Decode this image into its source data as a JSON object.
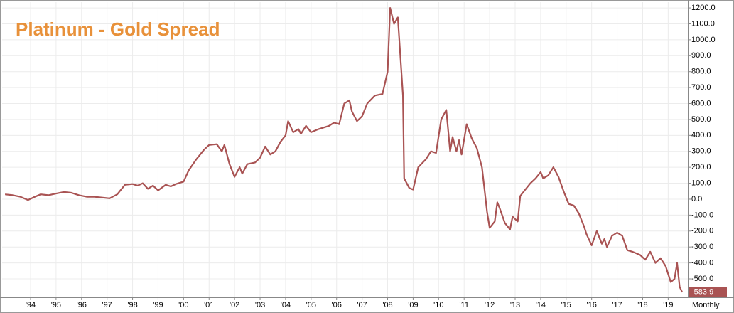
{
  "chart_data": {
    "type": "line",
    "title": "Platinum - Gold Spread",
    "period": "Monthly",
    "color": "#a95353",
    "grid": true,
    "x": [
      1993.0,
      1993.3,
      1993.6,
      1993.9,
      1994.1,
      1994.4,
      1994.7,
      1995.0,
      1995.3,
      1995.6,
      1995.9,
      1996.2,
      1996.5,
      1996.8,
      1997.1,
      1997.4,
      1997.7,
      1998.0,
      1998.2,
      1998.4,
      1998.6,
      1998.8,
      1999.0,
      1999.3,
      1999.5,
      1999.7,
      2000.0,
      2000.2,
      2000.5,
      2000.8,
      2001.0,
      2001.3,
      2001.5,
      2001.6,
      2001.8,
      2002.0,
      2002.2,
      2002.3,
      2002.5,
      2002.8,
      2003.0,
      2003.2,
      2003.4,
      2003.6,
      2003.8,
      2004.0,
      2004.1,
      2004.3,
      2004.5,
      2004.6,
      2004.8,
      2005.0,
      2005.3,
      2005.7,
      2005.9,
      2006.1,
      2006.3,
      2006.5,
      2006.6,
      2006.8,
      2007.0,
      2007.2,
      2007.5,
      2007.8,
      2008.0,
      2008.1,
      2008.25,
      2008.4,
      2008.6,
      2008.65,
      2008.85,
      2009.0,
      2009.2,
      2009.5,
      2009.7,
      2009.9,
      2010.1,
      2010.3,
      2010.45,
      2010.55,
      2010.7,
      2010.8,
      2010.9,
      2011.1,
      2011.3,
      2011.5,
      2011.7,
      2011.9,
      2012.0,
      2012.2,
      2012.3,
      2012.4,
      2012.6,
      2012.8,
      2012.9,
      2013.1,
      2013.2,
      2013.4,
      2013.6,
      2013.8,
      2014.0,
      2014.1,
      2014.3,
      2014.5,
      2014.7,
      2014.9,
      2015.1,
      2015.3,
      2015.5,
      2015.7,
      2015.8,
      2016.0,
      2016.2,
      2016.4,
      2016.5,
      2016.6,
      2016.8,
      2017.0,
      2017.2,
      2017.4,
      2017.6,
      2017.9,
      2018.1,
      2018.3,
      2018.5,
      2018.7,
      2018.9,
      2019.1,
      2019.25,
      2019.35,
      2019.45,
      2019.55
    ],
    "values": [
      30,
      25,
      15,
      -5,
      10,
      30,
      25,
      35,
      45,
      40,
      25,
      15,
      15,
      10,
      5,
      30,
      90,
      95,
      85,
      100,
      65,
      85,
      55,
      90,
      80,
      95,
      110,
      180,
      250,
      310,
      340,
      345,
      300,
      340,
      220,
      140,
      200,
      160,
      220,
      230,
      260,
      330,
      280,
      300,
      360,
      400,
      490,
      420,
      440,
      410,
      460,
      420,
      440,
      460,
      480,
      470,
      600,
      620,
      550,
      490,
      520,
      600,
      650,
      660,
      800,
      1200,
      1100,
      1140,
      650,
      130,
      70,
      60,
      200,
      250,
      300,
      290,
      500,
      560,
      300,
      390,
      300,
      370,
      280,
      470,
      380,
      320,
      200,
      -80,
      -180,
      -140,
      -20,
      -60,
      -150,
      -190,
      -110,
      -140,
      20,
      60,
      100,
      130,
      170,
      130,
      150,
      200,
      140,
      50,
      -30,
      -40,
      -90,
      -170,
      -220,
      -290,
      -200,
      -280,
      -250,
      -300,
      -230,
      -210,
      -230,
      -320,
      -330,
      -350,
      -380,
      -330,
      -400,
      -370,
      -420,
      -520,
      -500,
      -400,
      -550,
      -583.9
    ],
    "xlim": [
      1992.886,
      2019.77
    ],
    "xticks": [
      {
        "value": 1994,
        "label": "'94"
      },
      {
        "value": 1995,
        "label": "'95"
      },
      {
        "value": 1996,
        "label": "'96"
      },
      {
        "value": 1997,
        "label": "'97"
      },
      {
        "value": 1998,
        "label": "'98"
      },
      {
        "value": 1999,
        "label": "'99"
      },
      {
        "value": 2000,
        "label": "'00"
      },
      {
        "value": 2001,
        "label": "'01"
      },
      {
        "value": 2002,
        "label": "'02"
      },
      {
        "value": 2003,
        "label": "'03"
      },
      {
        "value": 2004,
        "label": "'04"
      },
      {
        "value": 2005,
        "label": "'05"
      },
      {
        "value": 2006,
        "label": "'06"
      },
      {
        "value": 2007,
        "label": "'07"
      },
      {
        "value": 2008,
        "label": "'08"
      },
      {
        "value": 2009,
        "label": "'09"
      },
      {
        "value": 2010,
        "label": "'10"
      },
      {
        "value": 2011,
        "label": "'11"
      },
      {
        "value": 2012,
        "label": "'12"
      },
      {
        "value": 2013,
        "label": "'13"
      },
      {
        "value": 2014,
        "label": "'14"
      },
      {
        "value": 2015,
        "label": "'15"
      },
      {
        "value": 2016,
        "label": "'16"
      },
      {
        "value": 2017,
        "label": "'17"
      },
      {
        "value": 2018,
        "label": "'18"
      },
      {
        "value": 2019,
        "label": "'19"
      }
    ],
    "ylim": [
      -616,
      1236
    ],
    "yticks": [
      {
        "value": -500,
        "label": "-500.0"
      },
      {
        "value": -400,
        "label": "-400.0"
      },
      {
        "value": -300,
        "label": "-300.0"
      },
      {
        "value": -200,
        "label": "-200.0"
      },
      {
        "value": -100,
        "label": "-100.0"
      },
      {
        "value": 0,
        "label": "0.0"
      },
      {
        "value": 100,
        "label": "100.0"
      },
      {
        "value": 200,
        "label": "200.0"
      },
      {
        "value": 300,
        "label": "300.0"
      },
      {
        "value": 400,
        "label": "400.0"
      },
      {
        "value": 500,
        "label": "500.0"
      },
      {
        "value": 600,
        "label": "600.0"
      },
      {
        "value": 700,
        "label": "700.0"
      },
      {
        "value": 800,
        "label": "800.0"
      },
      {
        "value": 900,
        "label": "900.0"
      },
      {
        "value": 1000,
        "label": "1000.0"
      },
      {
        "value": 1100,
        "label": "1100.0"
      },
      {
        "value": 1200,
        "label": "1200.0"
      }
    ]
  }
}
